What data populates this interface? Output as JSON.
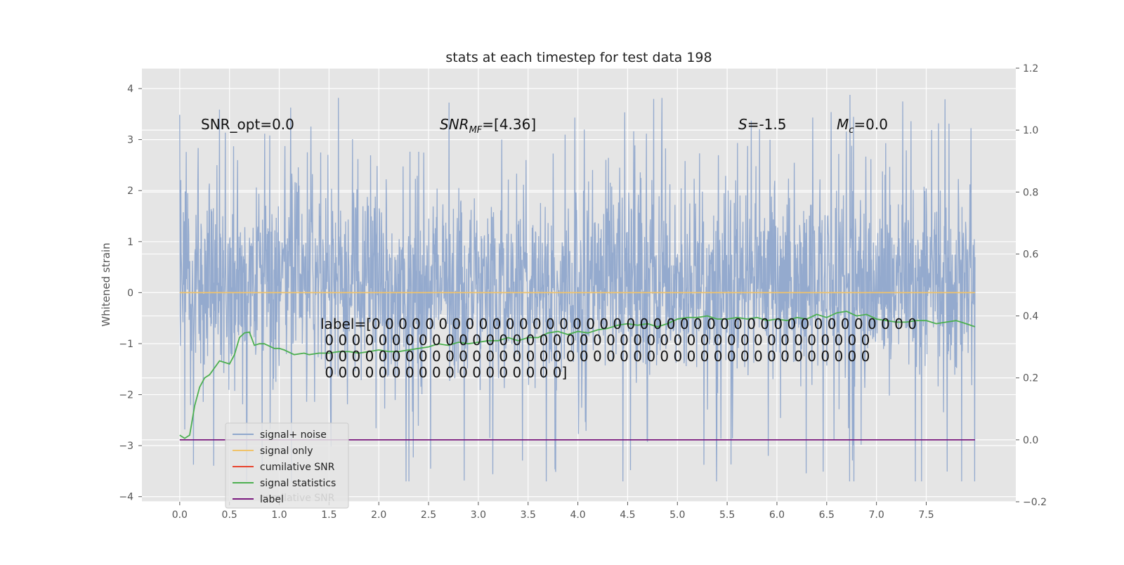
{
  "chart_data": {
    "type": "line",
    "title": "stats at each timestep for test data 198",
    "ylabel_left": "Whitened strain",
    "x_range": [
      -0.38,
      8.4
    ],
    "y_left_range": [
      -4.1,
      4.4
    ],
    "y_right_range": [
      -0.2,
      1.2
    ],
    "x_ticks": [
      "0.0",
      "0.5",
      "1.0",
      "1.5",
      "2.0",
      "2.5",
      "3.0",
      "3.5",
      "4.0",
      "4.5",
      "5.0",
      "5.5",
      "6.0",
      "6.5",
      "7.0",
      "7.5"
    ],
    "y_left_ticks": [
      "−4",
      "−3",
      "−2",
      "−1",
      "0",
      "1",
      "2",
      "3",
      "4"
    ],
    "y_right_ticks": [
      "−0.2",
      "0.0",
      "0.2",
      "0.4",
      "0.6",
      "0.8",
      "1.0",
      "1.2"
    ],
    "grid": true,
    "legend_placement": "lower-left",
    "annotations": {
      "snr_opt": "SNR_opt=0.0",
      "snr_mf": "SNR_MF=[4.36]",
      "spin": "S=-1.5",
      "chirp_mass": "M_c=0.0",
      "label_line1": "label=[0 0 0 0 0 0 0 0 0 0 0 0 0 0 0 0 0 0 0 0 0 0 0 0 0 0 0 0 0 0 0 0 0 0 0 0 0 0 0 0 0",
      "label_line2": " 0 0 0 0 0 0 0 0 0 0 0 0 0 0 0 0 0 0 0 0 0 0 0 0 0 0 0 0 0 0 0 0 0 0 0 0 0 0 0 0 0",
      "label_line3": " 0 0 0 0 0 0 0 0 0 0 0 0 0 0 0 0 0 0 0 0 0 0 0 0 0 0 0 0 0 0 0 0 0 0 0 0 0 0 0 0 0",
      "label_line4": " 0 0 0 0 0 0 0 0 0 0 0 0 0 0 0 0 0 0]"
    },
    "legend_ghost_text": "cumilative SNR",
    "series": [
      {
        "name": "signal+ noise",
        "axis": "left",
        "color": "#8fa7cc",
        "x_start": 0.0,
        "x_end": 7.99,
        "amplitude_std": 0.95,
        "min": -3.7,
        "max": 4.0,
        "note_values": "dense noise trace, ~8000 samples"
      },
      {
        "name": "signal only",
        "axis": "left",
        "color": "#f0c36a",
        "x": [
          0.0,
          7.99
        ],
        "y": [
          0.0,
          0.0
        ]
      },
      {
        "name": "cumilative SNR",
        "axis": "right",
        "color": "#e8442e",
        "x": [],
        "y": []
      },
      {
        "name": "signal statistics",
        "axis": "right",
        "color": "#4caf50",
        "x": [
          0.0,
          0.05,
          0.1,
          0.15,
          0.2,
          0.25,
          0.3,
          0.4,
          0.5,
          0.55,
          0.6,
          0.65,
          0.7,
          0.75,
          0.8,
          0.85,
          0.95,
          1.0,
          1.05,
          1.15,
          1.25,
          1.3,
          1.4,
          1.5,
          1.6,
          1.7,
          1.8,
          1.9,
          2.0,
          2.1,
          2.2,
          2.3,
          2.4,
          2.5,
          2.6,
          2.7,
          2.8,
          2.9,
          3.0,
          3.1,
          3.2,
          3.3,
          3.4,
          3.5,
          3.6,
          3.7,
          3.8,
          3.9,
          4.0,
          4.1,
          4.2,
          4.3,
          4.4,
          4.5,
          4.6,
          4.7,
          4.8,
          4.9,
          5.0,
          5.1,
          5.2,
          5.3,
          5.4,
          5.5,
          5.6,
          5.7,
          5.8,
          5.9,
          6.0,
          6.1,
          6.2,
          6.3,
          6.4,
          6.5,
          6.6,
          6.7,
          6.8,
          6.9,
          7.0,
          7.1,
          7.2,
          7.3,
          7.4,
          7.5,
          7.6,
          7.7,
          7.8,
          7.9,
          7.99
        ],
        "y": [
          0.015,
          0.005,
          0.015,
          0.11,
          0.17,
          0.2,
          0.21,
          0.255,
          0.245,
          0.275,
          0.33,
          0.345,
          0.348,
          0.305,
          0.31,
          0.31,
          0.295,
          0.295,
          0.29,
          0.275,
          0.28,
          0.275,
          0.28,
          0.28,
          0.285,
          0.285,
          0.28,
          0.285,
          0.29,
          0.285,
          0.285,
          0.29,
          0.295,
          0.3,
          0.31,
          0.305,
          0.315,
          0.31,
          0.315,
          0.32,
          0.32,
          0.33,
          0.32,
          0.33,
          0.33,
          0.345,
          0.35,
          0.34,
          0.35,
          0.345,
          0.355,
          0.36,
          0.37,
          0.375,
          0.37,
          0.375,
          0.365,
          0.375,
          0.39,
          0.395,
          0.395,
          0.4,
          0.39,
          0.39,
          0.395,
          0.39,
          0.395,
          0.385,
          0.39,
          0.385,
          0.395,
          0.39,
          0.405,
          0.395,
          0.41,
          0.415,
          0.4,
          0.405,
          0.39,
          0.385,
          0.38,
          0.38,
          0.385,
          0.385,
          0.375,
          0.38,
          0.385,
          0.375,
          0.365
        ]
      },
      {
        "name": "label",
        "axis": "right",
        "color": "#7b1a7e",
        "x": [
          0.0,
          7.99
        ],
        "y": [
          0.0,
          0.0
        ]
      }
    ]
  }
}
